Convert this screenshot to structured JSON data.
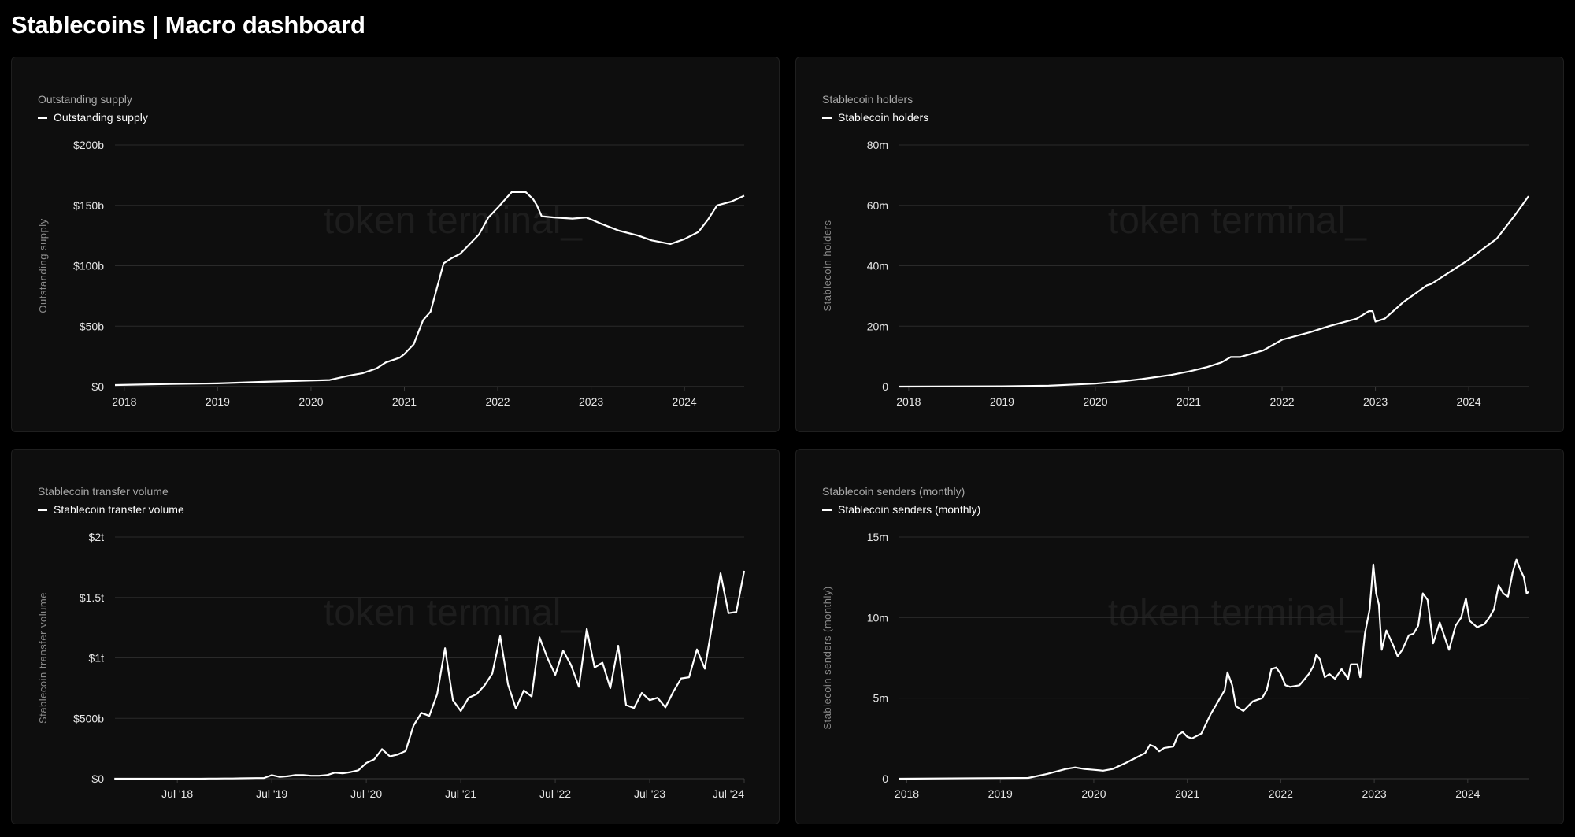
{
  "header": {
    "title": "Stablecoins | Macro dashboard"
  },
  "watermark": "token terminal_",
  "colors": {
    "background": "#000000",
    "panel": "#0e0e0e",
    "line": "#ffffff",
    "grid": "#2a2a2a"
  },
  "chart_data": [
    {
      "type": "line",
      "title": "Outstanding supply",
      "legend": [
        "Outstanding supply"
      ],
      "ylabel": "Outstanding supply",
      "xlabel": "",
      "x_unit": "decimal-year",
      "xlim": [
        2017.9,
        2024.64
      ],
      "ylim": [
        0,
        200
      ],
      "yticks": [
        0,
        50,
        100,
        150,
        200
      ],
      "ytick_labels": [
        "$0",
        "$50b",
        "$100b",
        "$150b",
        "$200b"
      ],
      "xticks": [
        2018,
        2019,
        2020,
        2021,
        2022,
        2023,
        2024
      ],
      "xtick_labels": [
        "2018",
        "2019",
        "2020",
        "2021",
        "2022",
        "2023",
        "2024"
      ],
      "grid": true,
      "legend_position": "top-left",
      "points": [
        [
          2017.9,
          1.3
        ],
        [
          2018.5,
          2.2
        ],
        [
          2019.0,
          2.7
        ],
        [
          2019.5,
          4
        ],
        [
          2020.0,
          5
        ],
        [
          2020.2,
          5.5
        ],
        [
          2020.4,
          9
        ],
        [
          2020.55,
          11
        ],
        [
          2020.7,
          15
        ],
        [
          2020.8,
          20
        ],
        [
          2020.95,
          24
        ],
        [
          2021.0,
          27
        ],
        [
          2021.1,
          35
        ],
        [
          2021.2,
          55
        ],
        [
          2021.28,
          62
        ],
        [
          2021.35,
          82
        ],
        [
          2021.42,
          102
        ],
        [
          2021.5,
          106
        ],
        [
          2021.6,
          110
        ],
        [
          2021.7,
          118
        ],
        [
          2021.8,
          126
        ],
        [
          2021.9,
          140
        ],
        [
          2022.0,
          148
        ],
        [
          2022.08,
          155
        ],
        [
          2022.15,
          161
        ],
        [
          2022.3,
          161
        ],
        [
          2022.38,
          155
        ],
        [
          2022.42,
          150
        ],
        [
          2022.47,
          141
        ],
        [
          2022.6,
          140
        ],
        [
          2022.8,
          139
        ],
        [
          2022.95,
          140
        ],
        [
          2023.1,
          135
        ],
        [
          2023.3,
          129
        ],
        [
          2023.5,
          125
        ],
        [
          2023.65,
          121
        ],
        [
          2023.85,
          118
        ],
        [
          2024.0,
          122
        ],
        [
          2024.15,
          128
        ],
        [
          2024.25,
          138
        ],
        [
          2024.35,
          150
        ],
        [
          2024.5,
          153
        ],
        [
          2024.64,
          158
        ]
      ]
    },
    {
      "type": "line",
      "title": "Stablecoin holders",
      "legend": [
        "Stablecoin holders"
      ],
      "ylabel": "Stablecoin holders",
      "xlabel": "",
      "x_unit": "decimal-year",
      "xlim": [
        2017.9,
        2024.64
      ],
      "ylim": [
        0,
        80
      ],
      "yticks": [
        0,
        20,
        40,
        60,
        80
      ],
      "ytick_labels": [
        "0",
        "20m",
        "40m",
        "60m",
        "80m"
      ],
      "xticks": [
        2018,
        2019,
        2020,
        2021,
        2022,
        2023,
        2024
      ],
      "xtick_labels": [
        "2018",
        "2019",
        "2020",
        "2021",
        "2022",
        "2023",
        "2024"
      ],
      "grid": true,
      "legend_position": "top-left",
      "points": [
        [
          2017.9,
          0
        ],
        [
          2019.0,
          0.1
        ],
        [
          2019.5,
          0.3
        ],
        [
          2020.0,
          1
        ],
        [
          2020.3,
          1.8
        ],
        [
          2020.5,
          2.5
        ],
        [
          2020.8,
          3.8
        ],
        [
          2021.0,
          5
        ],
        [
          2021.2,
          6.5
        ],
        [
          2021.35,
          8
        ],
        [
          2021.45,
          9.8
        ],
        [
          2021.55,
          9.8
        ],
        [
          2021.8,
          12
        ],
        [
          2022.0,
          15.5
        ],
        [
          2022.3,
          18
        ],
        [
          2022.5,
          20
        ],
        [
          2022.8,
          22.5
        ],
        [
          2022.93,
          25
        ],
        [
          2022.97,
          25
        ],
        [
          2023.0,
          21.5
        ],
        [
          2023.1,
          22.5
        ],
        [
          2023.3,
          28
        ],
        [
          2023.55,
          33.5
        ],
        [
          2023.6,
          34
        ],
        [
          2024.0,
          42
        ],
        [
          2024.3,
          49
        ],
        [
          2024.5,
          57
        ],
        [
          2024.64,
          63
        ]
      ]
    },
    {
      "type": "line",
      "title": "Stablecoin transfer volume",
      "legend": [
        "Stablecoin transfer volume"
      ],
      "ylabel": "Stablecoin transfer volume",
      "xlabel": "",
      "x_unit": "month",
      "start_month": "2017-11",
      "xlim": [
        2017.84,
        2024.5
      ],
      "ylim": [
        0,
        2000
      ],
      "yticks": [
        0,
        500,
        1000,
        1500,
        2000
      ],
      "ytick_labels": [
        "$0",
        "$500b",
        "$1t",
        "$1.5t",
        "$2t"
      ],
      "xticks": [
        2018.5,
        2019.5,
        2020.5,
        2021.5,
        2022.5,
        2023.5,
        2024.5
      ],
      "xtick_labels": [
        "Jul '18",
        "Jul '19",
        "Jul '20",
        "Jul '21",
        "Jul '22",
        "Jul '23",
        "Jul '24"
      ],
      "grid": true,
      "legend_position": "top-left",
      "values": [
        0,
        0,
        0,
        0,
        0,
        0,
        0,
        0,
        0,
        0,
        0,
        0,
        1,
        1,
        2,
        2,
        3,
        4,
        5,
        6,
        30,
        15,
        20,
        30,
        30,
        25,
        25,
        30,
        50,
        45,
        55,
        70,
        130,
        160,
        245,
        185,
        200,
        230,
        440,
        545,
        520,
        700,
        1080,
        650,
        560,
        670,
        700,
        770,
        870,
        1180,
        780,
        580,
        730,
        680,
        1170,
        1000,
        860,
        1060,
        940,
        760,
        1240,
        920,
        960,
        750,
        1100,
        610,
        585,
        710,
        650,
        670,
        590,
        720,
        830,
        840,
        1070,
        910,
        1300,
        1700,
        1370,
        1380,
        1720
      ]
    },
    {
      "type": "line",
      "title": "Stablecoin senders (monthly)",
      "legend": [
        "Stablecoin senders (monthly)"
      ],
      "ylabel": "Stablecoin senders (monthly)",
      "xlabel": "",
      "x_unit": "decimal-year",
      "xlim": [
        2017.92,
        2024.65
      ],
      "ylim": [
        0,
        15
      ],
      "yticks": [
        0,
        5,
        10,
        15
      ],
      "ytick_labels": [
        "0",
        "5m",
        "10m",
        "15m"
      ],
      "xticks": [
        2018,
        2019,
        2020,
        2021,
        2022,
        2023,
        2024
      ],
      "xtick_labels": [
        "2018",
        "2019",
        "2020",
        "2021",
        "2022",
        "2023",
        "2024"
      ],
      "grid": true,
      "legend_position": "top-left",
      "points": [
        [
          2017.92,
          0
        ],
        [
          2019.3,
          0.05
        ],
        [
          2019.5,
          0.3
        ],
        [
          2019.7,
          0.6
        ],
        [
          2019.8,
          0.7
        ],
        [
          2019.9,
          0.6
        ],
        [
          2020.0,
          0.55
        ],
        [
          2020.1,
          0.5
        ],
        [
          2020.2,
          0.6
        ],
        [
          2020.35,
          1.0
        ],
        [
          2020.45,
          1.3
        ],
        [
          2020.55,
          1.6
        ],
        [
          2020.6,
          2.1
        ],
        [
          2020.65,
          2.0
        ],
        [
          2020.7,
          1.7
        ],
        [
          2020.75,
          1.9
        ],
        [
          2020.85,
          2.0
        ],
        [
          2020.9,
          2.7
        ],
        [
          2020.95,
          2.9
        ],
        [
          2021.0,
          2.6
        ],
        [
          2021.05,
          2.5
        ],
        [
          2021.15,
          2.8
        ],
        [
          2021.2,
          3.4
        ],
        [
          2021.25,
          4.0
        ],
        [
          2021.3,
          4.5
        ],
        [
          2021.35,
          5.0
        ],
        [
          2021.4,
          5.5
        ],
        [
          2021.43,
          6.6
        ],
        [
          2021.48,
          5.8
        ],
        [
          2021.52,
          4.5
        ],
        [
          2021.6,
          4.2
        ],
        [
          2021.7,
          4.8
        ],
        [
          2021.8,
          5.0
        ],
        [
          2021.85,
          5.5
        ],
        [
          2021.9,
          6.8
        ],
        [
          2021.95,
          6.9
        ],
        [
          2022.0,
          6.5
        ],
        [
          2022.05,
          5.8
        ],
        [
          2022.1,
          5.7
        ],
        [
          2022.2,
          5.8
        ],
        [
          2022.3,
          6.5
        ],
        [
          2022.35,
          7.0
        ],
        [
          2022.38,
          7.7
        ],
        [
          2022.42,
          7.4
        ],
        [
          2022.47,
          6.3
        ],
        [
          2022.52,
          6.5
        ],
        [
          2022.58,
          6.2
        ],
        [
          2022.65,
          6.8
        ],
        [
          2022.72,
          6.2
        ],
        [
          2022.75,
          7.1
        ],
        [
          2022.82,
          7.1
        ],
        [
          2022.85,
          6.3
        ],
        [
          2022.9,
          9.0
        ],
        [
          2022.95,
          10.5
        ],
        [
          2022.99,
          13.3
        ],
        [
          2023.02,
          11.5
        ],
        [
          2023.05,
          10.8
        ],
        [
          2023.08,
          8.0
        ],
        [
          2023.13,
          9.2
        ],
        [
          2023.2,
          8.3
        ],
        [
          2023.25,
          7.6
        ],
        [
          2023.3,
          8.0
        ],
        [
          2023.37,
          8.9
        ],
        [
          2023.42,
          9.0
        ],
        [
          2023.47,
          9.5
        ],
        [
          2023.52,
          11.5
        ],
        [
          2023.57,
          11.1
        ],
        [
          2023.63,
          8.4
        ],
        [
          2023.7,
          9.7
        ],
        [
          2023.77,
          8.5
        ],
        [
          2023.8,
          8.0
        ],
        [
          2023.87,
          9.5
        ],
        [
          2023.93,
          10.0
        ],
        [
          2023.98,
          11.2
        ],
        [
          2024.02,
          9.8
        ],
        [
          2024.1,
          9.4
        ],
        [
          2024.18,
          9.6
        ],
        [
          2024.23,
          10.0
        ],
        [
          2024.28,
          10.5
        ],
        [
          2024.33,
          12.0
        ],
        [
          2024.38,
          11.5
        ],
        [
          2024.43,
          11.3
        ],
        [
          2024.48,
          12.8
        ],
        [
          2024.52,
          13.6
        ],
        [
          2024.56,
          13.0
        ],
        [
          2024.6,
          12.5
        ],
        [
          2024.63,
          11.5
        ],
        [
          2024.65,
          11.6
        ]
      ]
    }
  ]
}
